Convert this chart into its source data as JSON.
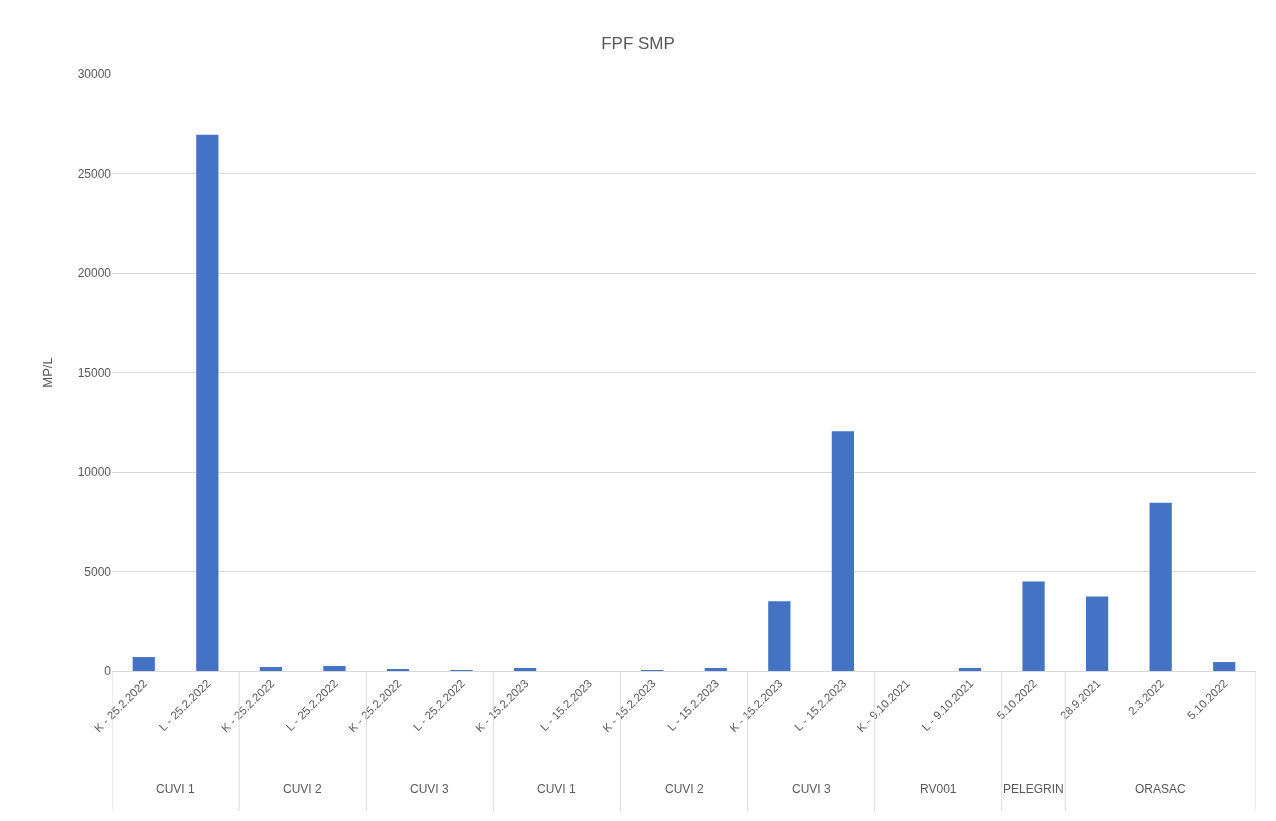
{
  "chart_data": {
    "type": "bar",
    "title": "FPF SMP",
    "ylabel": "MP/L",
    "categories": [
      "K - 25.2.2022",
      "L - 25.2.2022",
      "K - 25.2.2022",
      "L - 25.2.2022",
      "K - 25.2.2022",
      "L - 25.2.2022",
      "K - 15.2.2023",
      "L - 15.2.2023",
      "K - 15.2.2023",
      "L - 15.2.2023",
      "K - 15.2.2023",
      "L - 15.2.2023",
      "K - 9.10.2021",
      "L - 9.10.2021",
      "5.10.2022",
      "28.9.2021",
      "2.3.2022",
      "5.10.2022"
    ],
    "values": [
      700,
      26950,
      200,
      250,
      100,
      50,
      150,
      0,
      50,
      150,
      3500,
      12050,
      0,
      150,
      4500,
      3750,
      8450,
      450
    ],
    "color": "#4472c4",
    "ylim": [
      0,
      30000
    ],
    "yticks": [
      0,
      5000,
      10000,
      15000,
      20000,
      25000,
      30000
    ],
    "grid": "y",
    "legend": false,
    "annotations": [
      "CUVI 1",
      "CUVI 2",
      "CUVI 3",
      "CUVI 1",
      "CUVI 2",
      "CUVI 3",
      "RV001",
      "PELEGRIN",
      "ORASAC"
    ]
  }
}
